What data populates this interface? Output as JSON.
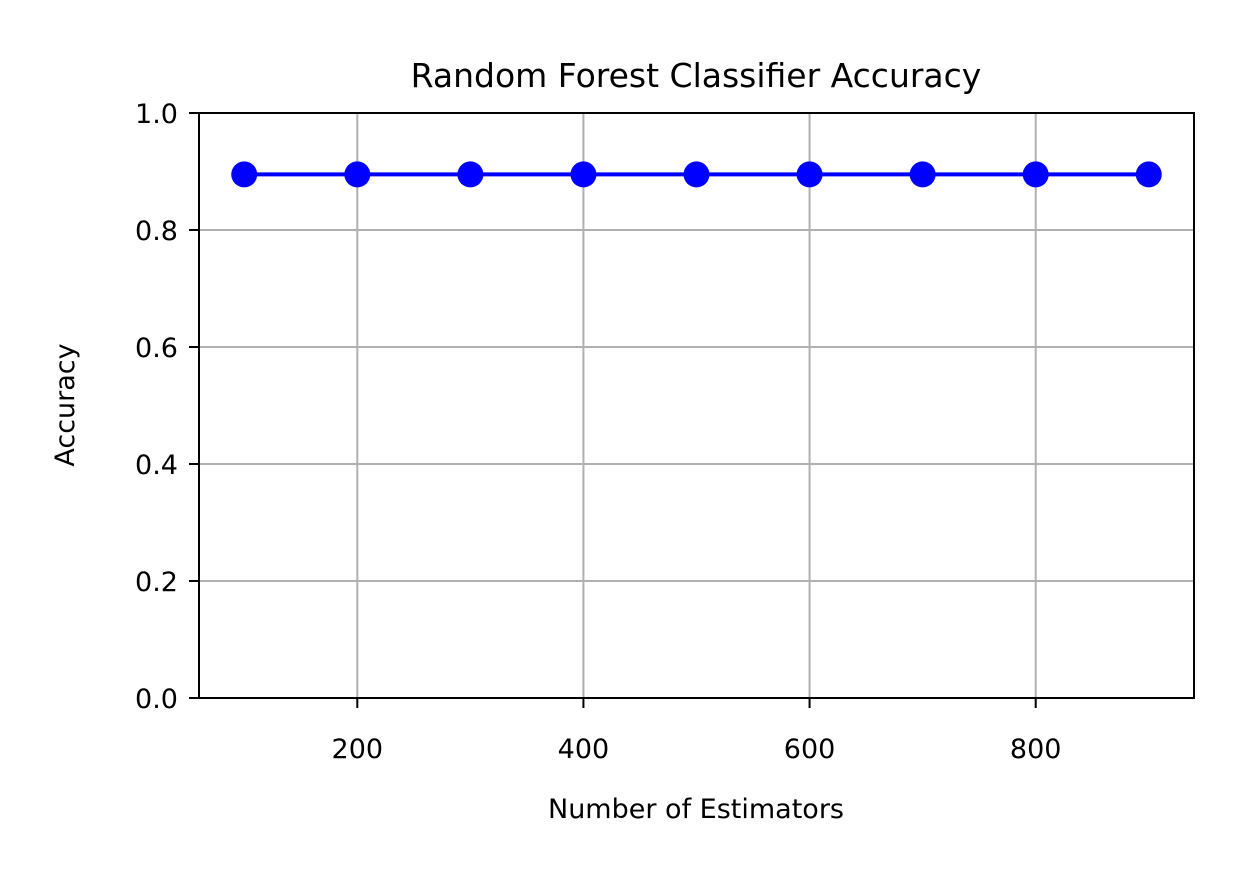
{
  "chart_data": {
    "type": "line",
    "title": "Random Forest Classifier Accuracy",
    "xlabel": "Number of Estimators",
    "ylabel": "Accuracy",
    "x": [
      100,
      200,
      300,
      400,
      500,
      600,
      700,
      800,
      900
    ],
    "series": [
      {
        "values": [
          0.895,
          0.895,
          0.895,
          0.895,
          0.895,
          0.895,
          0.895,
          0.895,
          0.895
        ],
        "color": "#0000ff",
        "marker": "circle"
      }
    ],
    "xlim": [
      60,
      940
    ],
    "ylim": [
      0.0,
      1.0
    ],
    "xticks": [
      200,
      400,
      600,
      800
    ],
    "xtick_labels": [
      "200",
      "400",
      "600",
      "800"
    ],
    "yticks": [
      0.0,
      0.2,
      0.4,
      0.6,
      0.8,
      1.0
    ],
    "ytick_labels": [
      "0.0",
      "0.2",
      "0.4",
      "0.6",
      "0.8",
      "1.0"
    ],
    "grid": true,
    "legend": false
  }
}
